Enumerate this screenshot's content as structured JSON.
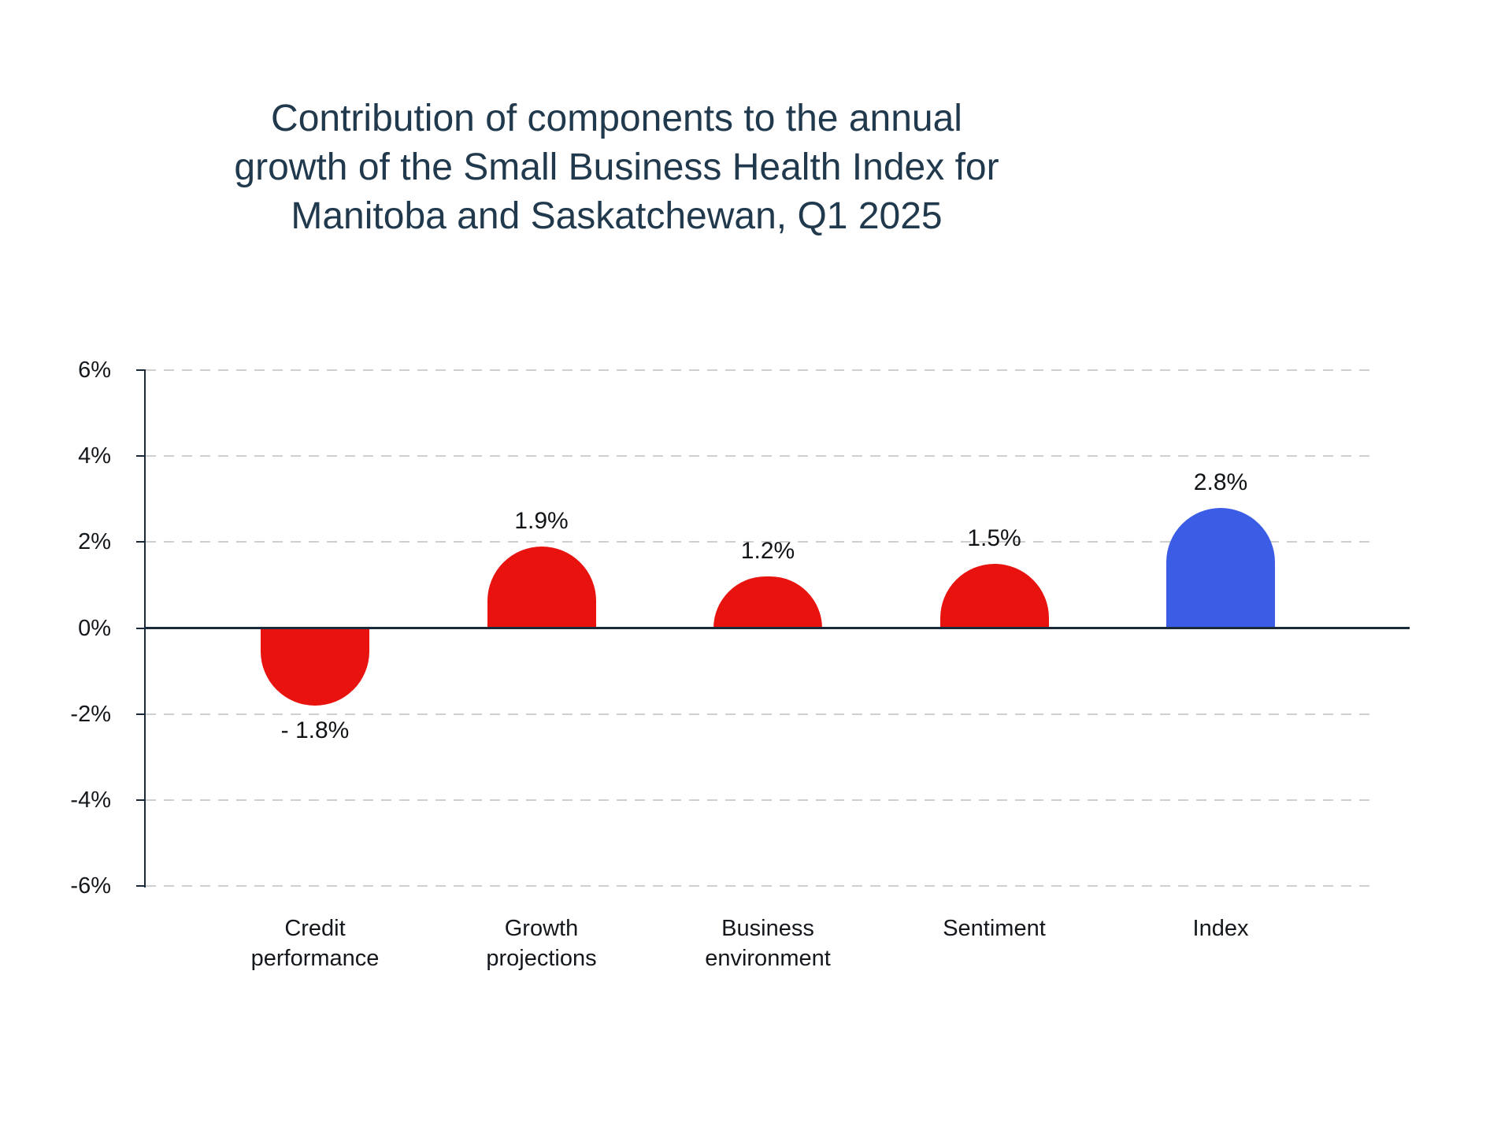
{
  "page": {
    "background": "#ffffff"
  },
  "chart_data": {
    "type": "bar",
    "title": "Contribution of components to the annual growth of the Small Business Health Index for Manitoba and Saskatchewan, Q1 2025",
    "title_lines": [
      "Contribution of components to the annual",
      "growth of the Small Business Health Index for",
      "Manitoba and Saskatchewan, Q1 2025"
    ],
    "categories": [
      "Credit performance",
      "Growth projections",
      "Business environment",
      "Sentiment",
      "Index"
    ],
    "category_lines": [
      [
        "Credit",
        "performance"
      ],
      [
        "Growth",
        "projections"
      ],
      [
        "Business",
        "environment"
      ],
      [
        "Sentiment"
      ],
      [
        "Index"
      ]
    ],
    "values": [
      -1.8,
      1.9,
      1.2,
      1.5,
      2.8
    ],
    "value_labels": [
      "- 1.8%",
      "1.9%",
      "1.2%",
      "1.5%",
      "2.8%"
    ],
    "bar_colors": [
      "#e8120e",
      "#e8120e",
      "#e8120e",
      "#e8120e",
      "#3b5ce4"
    ],
    "xlabel": "",
    "ylabel": "",
    "ylim": [
      -6,
      6
    ],
    "ytick_step": 2,
    "ytick_labels": [
      "6%",
      "4%",
      "2%",
      "0%",
      "-2%",
      "-4%",
      "-6%"
    ],
    "grid": "horizontal dashed, solid zero line",
    "legend": "none",
    "colors": {
      "component_bar": "#e8120e",
      "index_bar": "#3b5ce4",
      "title_text": "#21394d",
      "axis_text": "#14181c",
      "gridline": "#cfcfcf",
      "zero_line": "#1b2a38"
    }
  }
}
